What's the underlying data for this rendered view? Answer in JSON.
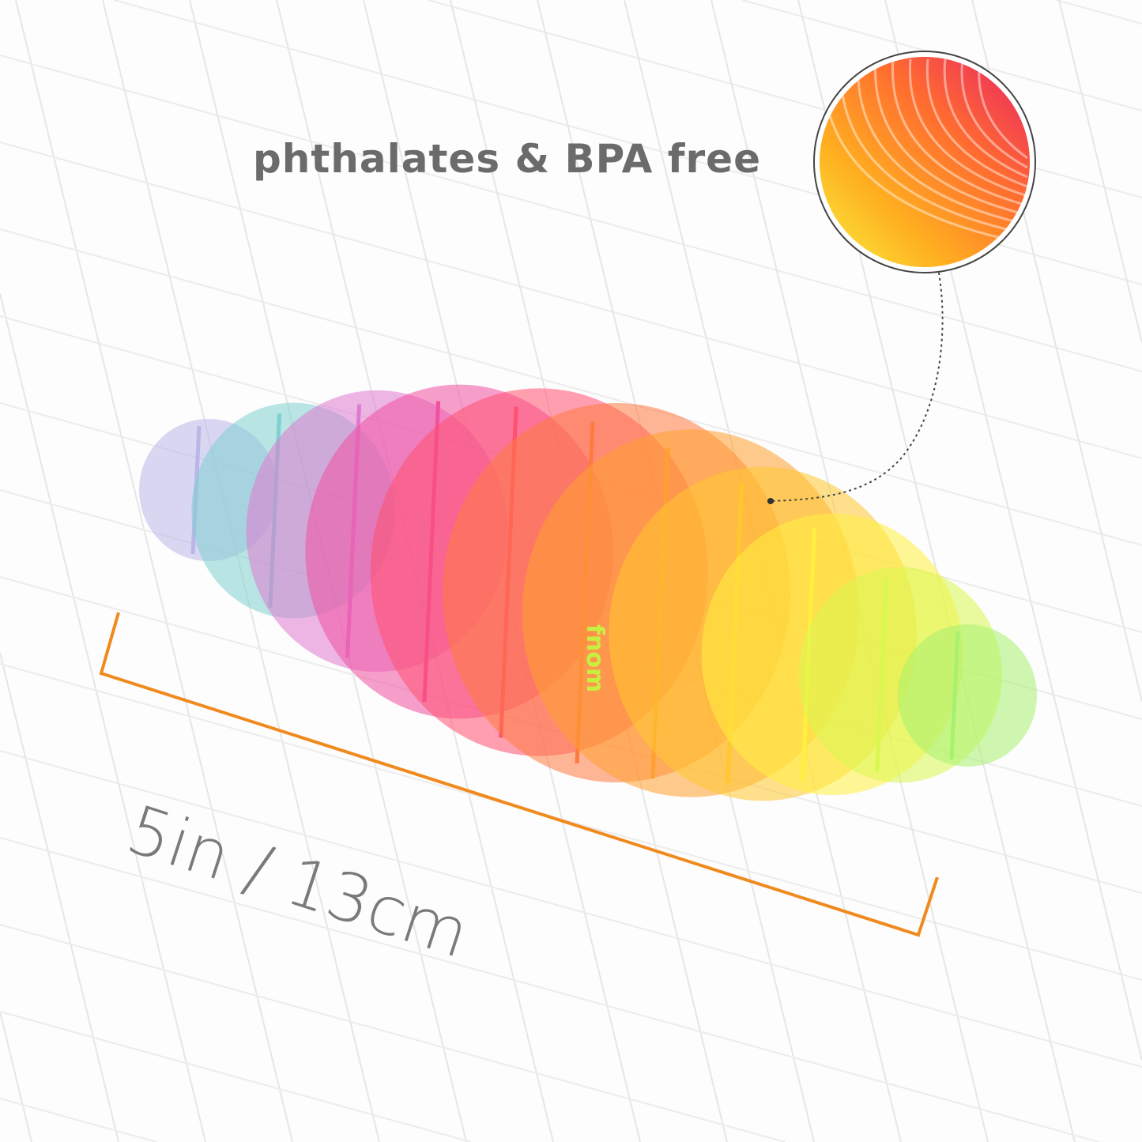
{
  "headline": "phthalates & BPA free",
  "measurement": "5in / 13cm",
  "logo_text": "fnom",
  "colors": {
    "text": "#6b6b6b",
    "bracket": "#f08a1e",
    "rainbow": [
      "#b9b7e8",
      "#7fd0d0",
      "#e07ad0",
      "#f050a0",
      "#ff5070",
      "#ff7a40",
      "#ffa030",
      "#ffc830",
      "#fff040",
      "#d8f850",
      "#a8f070"
    ]
  }
}
